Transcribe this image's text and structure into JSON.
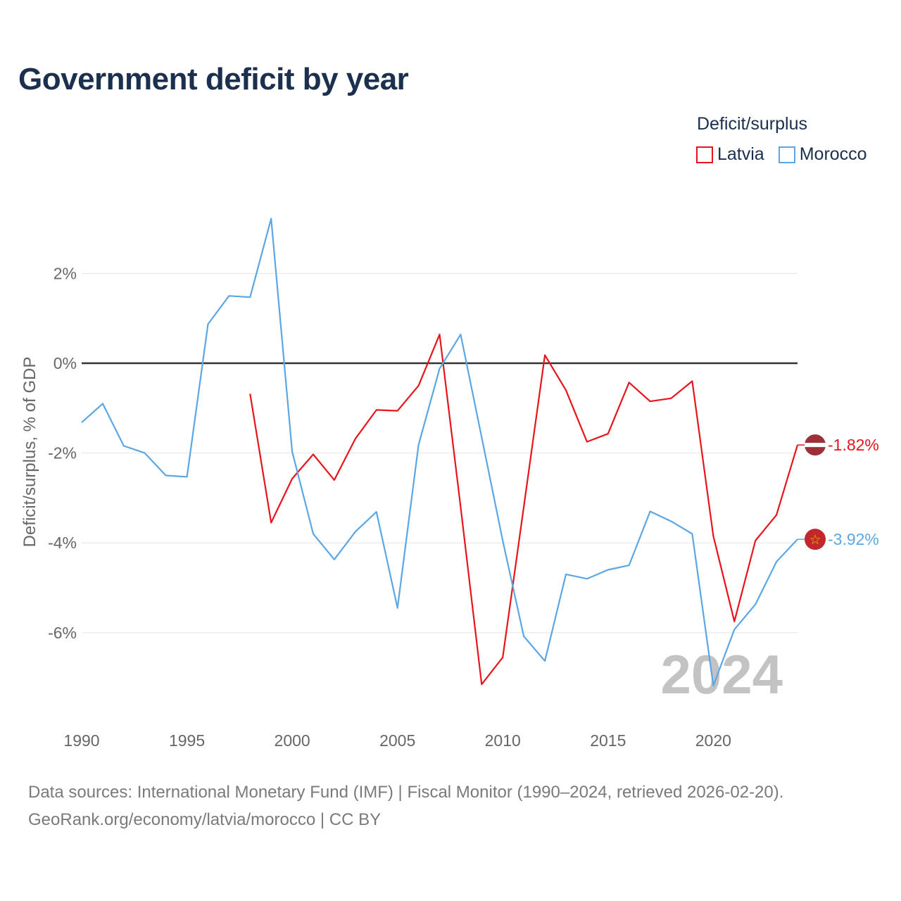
{
  "title": "Government deficit by year",
  "legend": {
    "title": "Deficit/surplus",
    "items": [
      {
        "name": "Latvia",
        "color": "#e8141b"
      },
      {
        "name": "Morocco",
        "color": "#5ca7e3"
      }
    ]
  },
  "watermark_year": "2024",
  "footer": {
    "line1": "Data sources: International Monetary Fund (IMF) | Fiscal Monitor (1990–2024, retrieved 2026-02-20).",
    "line2": "GeoRank.org/economy/latvia/morocco | CC BY"
  },
  "chart_data": {
    "type": "line",
    "title": "Government deficit by year",
    "xlabel": "",
    "ylabel": "Deficit/surplus, % of GDP",
    "xlim": [
      1990,
      2024
    ],
    "ylim": [
      -7.8,
      3.3
    ],
    "x_ticks": [
      1990,
      1995,
      2000,
      2005,
      2010,
      2015,
      2020
    ],
    "y_ticks": [
      2,
      0,
      -2,
      -4,
      -6
    ],
    "y_tick_labels": [
      "2%",
      "0%",
      "-2%",
      "-4%",
      "-6%"
    ],
    "grid": true,
    "legend_position": "top-right",
    "series": [
      {
        "name": "Latvia",
        "color": "#e8141b",
        "x": [
          1998,
          1999,
          2000,
          2001,
          2002,
          2003,
          2004,
          2005,
          2006,
          2007,
          2008,
          2009,
          2010,
          2011,
          2012,
          2013,
          2014,
          2015,
          2016,
          2017,
          2018,
          2019,
          2020,
          2021,
          2022,
          2023,
          2024
        ],
        "values": [
          -0.68,
          -3.55,
          -2.57,
          -2.03,
          -2.6,
          -1.68,
          -1.04,
          -1.06,
          -0.5,
          0.64,
          -3.2,
          -7.15,
          -6.55,
          -3.2,
          0.18,
          -0.6,
          -1.75,
          -1.57,
          -0.43,
          -0.85,
          -0.78,
          -0.4,
          -3.85,
          -5.75,
          -3.95,
          -3.38,
          -1.82
        ],
        "end_label": "-1.82%"
      },
      {
        "name": "Morocco",
        "color": "#5ca7e3",
        "x": [
          1990,
          1991,
          1992,
          1993,
          1994,
          1995,
          1996,
          1997,
          1998,
          1999,
          2000,
          2001,
          2002,
          2003,
          2004,
          2005,
          2006,
          2007,
          2008,
          2009,
          2010,
          2011,
          2012,
          2013,
          2014,
          2015,
          2016,
          2017,
          2018,
          2019,
          2020,
          2021,
          2022,
          2023,
          2024
        ],
        "values": [
          -1.32,
          -0.9,
          -1.84,
          -2.0,
          -2.5,
          -2.53,
          0.87,
          1.5,
          1.47,
          3.22,
          -1.97,
          -3.8,
          -4.37,
          -3.75,
          -3.31,
          -5.45,
          -1.82,
          -0.12,
          0.64,
          -1.65,
          -3.95,
          -6.08,
          -6.63,
          -4.7,
          -4.8,
          -4.6,
          -4.5,
          -3.3,
          -3.52,
          -3.8,
          -7.18,
          -5.93,
          -5.37,
          -4.42,
          -3.92
        ],
        "end_label": "-3.92%"
      }
    ]
  }
}
